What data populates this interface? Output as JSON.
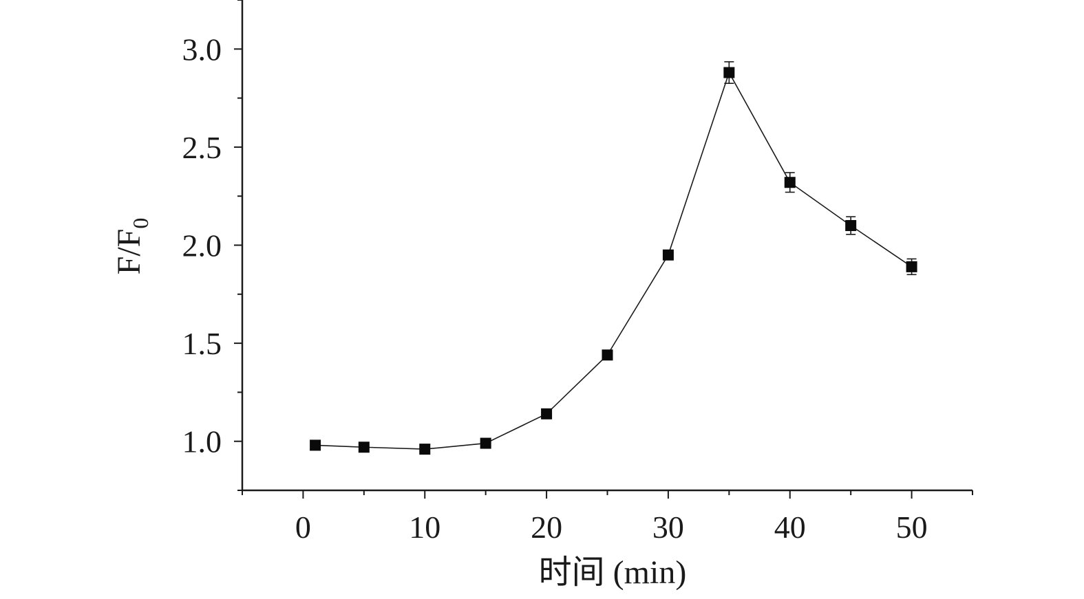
{
  "chart_data": {
    "type": "scatter",
    "title": "",
    "xlabel": "时间 (min)",
    "ylabel_main": "F/F",
    "ylabel_sub": "0",
    "xlim": [
      -5,
      55
    ],
    "ylim": [
      0.75,
      3.25
    ],
    "x_ticks": [
      0,
      10,
      20,
      30,
      40,
      50
    ],
    "x_tick_labels": [
      "0",
      "10",
      "20",
      "30",
      "40",
      "50"
    ],
    "x_minor_ticks": [
      -5,
      5,
      15,
      25,
      35,
      45,
      55
    ],
    "y_ticks": [
      1.0,
      1.5,
      2.0,
      2.5,
      3.0
    ],
    "y_tick_labels": [
      "1.0",
      "1.5",
      "2.0",
      "2.5",
      "3.0"
    ],
    "y_minor_ticks": [
      0.75,
      1.25,
      1.75,
      2.25,
      2.75,
      3.25
    ],
    "grid": false,
    "connected": true,
    "marker": "square",
    "color": "#0a0a0a",
    "series": [
      {
        "x": [
          1,
          5,
          10,
          15,
          20,
          25,
          30,
          35,
          40,
          45,
          50
        ],
        "y": [
          0.98,
          0.97,
          0.96,
          0.99,
          1.14,
          1.44,
          1.95,
          2.88,
          2.32,
          2.1,
          1.89
        ],
        "error": [
          0.015,
          0.015,
          0.015,
          0.015,
          0.02,
          0.02,
          0.02,
          0.055,
          0.05,
          0.045,
          0.04
        ]
      }
    ]
  }
}
